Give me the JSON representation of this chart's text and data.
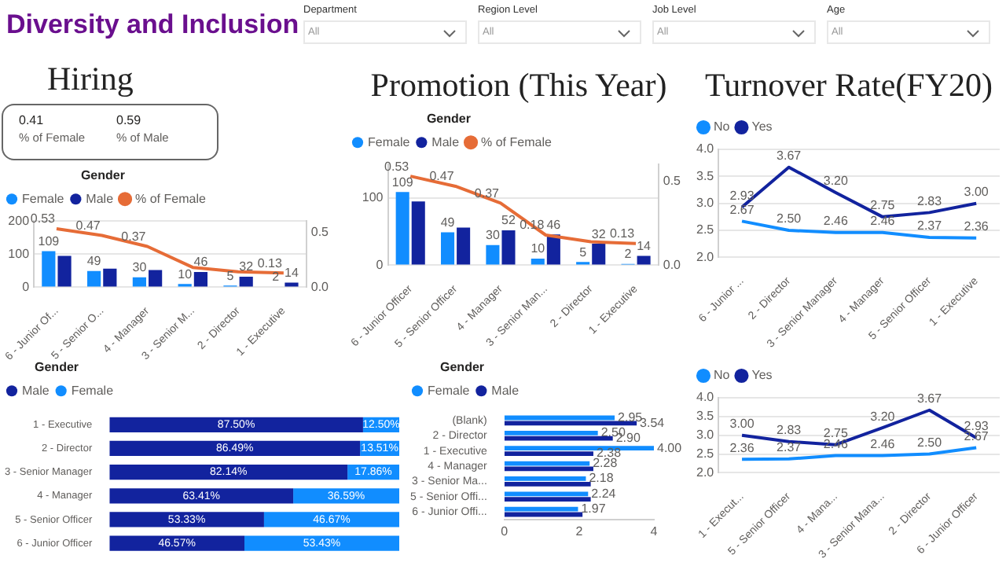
{
  "chart_data": [
    {
      "type": "other",
      "title": "Diversity and Inclusion",
      "annotations": [
        "Department",
        "All",
        "Region Level",
        "All",
        "Job Level",
        "All",
        "Age",
        "All"
      ]
    },
    {
      "type": "other",
      "title": "Hiring",
      "annotations": [
        "0.41",
        "% of Female",
        "0.59",
        "% of Male"
      ]
    },
    {
      "type": "bar",
      "legend_title": "Gender",
      "legend": "top left",
      "grid": "y",
      "marker": "none",
      "categories": [
        "6 - Junior Of...",
        "5 - Senior O...",
        "4 - Manager",
        "3 - Senior M...",
        "2 - Director",
        "1 - Executive"
      ],
      "series": [
        {
          "name": "Female",
          "color": "#118dff",
          "values": [
            109,
            49,
            30,
            10,
            5,
            2
          ],
          "value_labels": [
            "109",
            "49",
            "30",
            "10",
            "5",
            "2"
          ]
        },
        {
          "name": "Male",
          "color": "#12239e",
          "values": [
            95,
            56,
            52,
            46,
            32,
            14
          ],
          "value_labels": [
            null,
            null,
            null,
            "46",
            "32",
            "14"
          ]
        },
        {
          "name": "% of Female",
          "type": "line",
          "axis": "y2",
          "color": "#e66c37",
          "values": [
            0.53,
            0.47,
            0.37,
            0.18,
            0.14,
            0.13
          ],
          "value_labels": [
            "0.53",
            "0.47",
            "0.37",
            null,
            null,
            "0.13"
          ]
        }
      ],
      "ylim": [
        0,
        200
      ],
      "yticks": [
        0,
        100,
        200
      ],
      "y2lim": [
        0,
        0.6
      ],
      "y2ticks": [
        {
          "value": 0,
          "label": "0.0"
        },
        0.5
      ]
    },
    {
      "type": "bar",
      "title": "Promotion (This Year)",
      "legend_title": "Gender",
      "legend": "top left",
      "grid": "y",
      "marker": "none",
      "categories": [
        "6 - Junior Officer",
        "5 - Senior Officer",
        "4 - Manager",
        "3 - Senior Man...",
        "2 - Director",
        "1 - Executive"
      ],
      "series": [
        {
          "name": "Female",
          "color": "#118dff",
          "values": [
            109,
            49,
            30,
            10,
            5,
            2
          ],
          "value_labels": [
            "109",
            "49",
            "30",
            "10",
            "5",
            "2"
          ]
        },
        {
          "name": "Male",
          "color": "#12239e",
          "values": [
            95,
            56,
            52,
            46,
            32,
            14
          ],
          "value_labels": [
            null,
            null,
            "52",
            "46",
            "32",
            "14"
          ]
        },
        {
          "name": "% of Female",
          "type": "line",
          "axis": "y2",
          "color": "#e66c37",
          "values": [
            0.53,
            0.47,
            0.37,
            0.18,
            0.14,
            0.13
          ],
          "value_labels": [
            "0.53",
            "0.47",
            "0.37",
            "0.18",
            null,
            "0.13"
          ]
        }
      ],
      "ylim": [
        0,
        150
      ],
      "yticks": [
        0,
        100
      ],
      "y2lim": [
        0,
        0.6
      ],
      "y2ticks": [
        {
          "value": 0,
          "label": "0.0"
        },
        0.5
      ]
    },
    {
      "type": "line",
      "title": "Turnover Rate(FY20)",
      "legend": "top left",
      "grid": "y",
      "marker": "none",
      "categories": [
        "6 - Junior ...",
        "2 - Director",
        "3 - Senior Manager",
        "4 - Manager",
        "5 - Senior Officer",
        "1 - Executive"
      ],
      "series": [
        {
          "name": "No",
          "color": "#118dff",
          "values": [
            2.67,
            2.5,
            2.46,
            2.46,
            2.37,
            2.36
          ],
          "value_labels": [
            "2.67",
            "2.50",
            "2.46",
            "2.46",
            "2.37",
            "2.36"
          ]
        },
        {
          "name": "Yes",
          "color": "#12239e",
          "values": [
            2.93,
            3.67,
            3.2,
            2.75,
            2.83,
            3.0
          ],
          "value_labels": [
            "2.93",
            "3.67",
            "3.20",
            "2.75",
            "2.83",
            "3.00"
          ]
        }
      ],
      "ylim": [
        2,
        4
      ],
      "yticks": [
        {
          "value": 2,
          "label": "2.0"
        },
        {
          "value": 2.5,
          "label": "2.5"
        },
        {
          "value": 3,
          "label": "3.0"
        },
        {
          "value": 3.5,
          "label": "3.5"
        },
        {
          "value": 4,
          "label": "4.0"
        }
      ]
    },
    {
      "type": "bar",
      "orientation": "horizontal",
      "stacked": true,
      "legend_title": "Gender",
      "legend": "top left",
      "tick_labels": "y",
      "categories": [
        "1 - Executive",
        "2 - Director",
        "3 - Senior Manager",
        "4 - Manager",
        "5 - Senior Officer",
        "6 - Junior Officer"
      ],
      "series": [
        {
          "name": "Male",
          "color": "#12239e",
          "values": [
            87.5,
            86.49,
            82.14,
            63.41,
            53.33,
            46.57
          ],
          "value_labels": [
            "87.50%",
            "86.49%",
            "82.14%",
            "63.41%",
            "53.33%",
            "46.57%"
          ]
        },
        {
          "name": "Female",
          "color": "#118dff",
          "values": [
            12.5,
            13.51,
            17.86,
            36.59,
            46.67,
            53.43
          ],
          "value_labels": [
            "12.50%",
            "13.51%",
            "17.86%",
            "36.59%",
            "46.67%",
            "53.43%"
          ]
        }
      ],
      "xlim": [
        0,
        100
      ]
    },
    {
      "type": "bar",
      "orientation": "horizontal",
      "legend_title": "Gender",
      "legend": "top left",
      "categories": [
        "(Blank)",
        "2 - Director",
        "1 - Executive",
        "4 - Manager",
        "3 - Senior Ma...",
        "5 - Senior Offi...",
        "6 - Junior Offi..."
      ],
      "series": [
        {
          "name": "Female",
          "color": "#118dff",
          "values": [
            2.95,
            2.5,
            4.0,
            2.28,
            2.18,
            2.24,
            1.97
          ],
          "value_labels": [
            "2.95",
            "2.50",
            "4.00",
            "2.28",
            "2.18",
            "2.24",
            "1.97"
          ]
        },
        {
          "name": "Male",
          "color": "#12239e",
          "values": [
            3.54,
            2.9,
            2.38,
            2.38,
            2.31,
            2.31,
            2.09
          ],
          "value_labels": [
            "3.54",
            "2.90",
            "2.38",
            null,
            null,
            null,
            null
          ]
        }
      ],
      "xlim": [
        0,
        4
      ],
      "xticks": [
        0,
        2,
        4
      ]
    },
    {
      "type": "line",
      "legend": "top left",
      "grid": "y",
      "marker": "none",
      "categories": [
        "1 - Execut...",
        "5 - Senior Officer",
        "4 - Mana...",
        "3 - Senior Mana...",
        "2 - Director",
        "6 - Junior Officer"
      ],
      "series": [
        {
          "name": "No",
          "color": "#118dff",
          "values": [
            2.36,
            2.37,
            2.46,
            2.46,
            2.5,
            2.67
          ],
          "value_labels": [
            "2.36",
            "2.37",
            "2.46",
            "2.46",
            "2.50",
            "2.67"
          ]
        },
        {
          "name": "Yes",
          "color": "#12239e",
          "values": [
            3.0,
            2.83,
            2.75,
            3.2,
            3.67,
            2.93
          ],
          "value_labels": [
            "3.00",
            "2.83",
            "2.75",
            "3.20",
            "3.67",
            "2.93"
          ]
        }
      ],
      "ylim": [
        2,
        4
      ],
      "yticks": [
        {
          "value": 2,
          "label": "2.0"
        },
        {
          "value": 2.5,
          "label": "2.5"
        },
        {
          "value": 3,
          "label": "3.0"
        },
        {
          "value": 3.5,
          "label": "3.5"
        },
        {
          "value": 4,
          "label": "4.0"
        }
      ]
    }
  ]
}
